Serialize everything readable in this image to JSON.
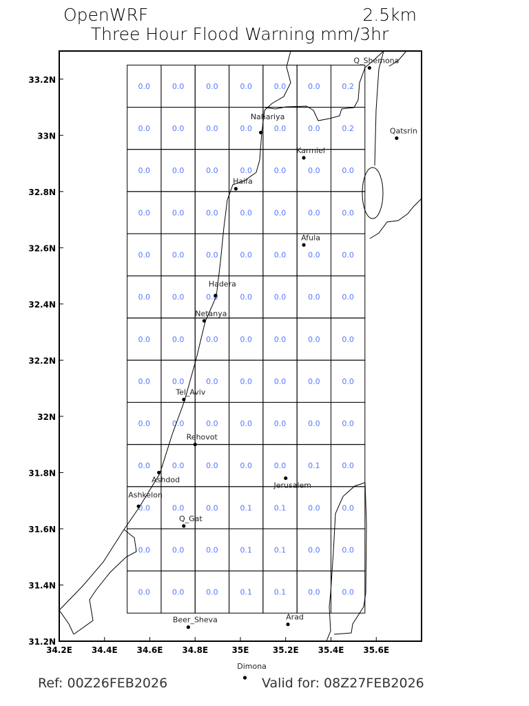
{
  "header": {
    "model": "OpenWRF",
    "resolution": "2.5km",
    "title": "Three Hour Flood Warning mm/3hr"
  },
  "footer": {
    "ref": "Ref: 00Z26FEB2026",
    "valid": "Valid for: 08Z27FEB2026"
  },
  "map": {
    "lon_range": [
      34.2,
      35.8
    ],
    "lat_range": [
      31.2,
      33.3
    ],
    "x_ticks": [
      "34.2E",
      "34.4E",
      "34.6E",
      "34.8E",
      "35E",
      "35.2E",
      "35.4E",
      "35.6E"
    ],
    "x_tick_values": [
      34.2,
      34.4,
      34.6,
      34.8,
      35.0,
      35.2,
      35.4,
      35.6
    ],
    "y_ticks": [
      "31.2N",
      "31.4N",
      "31.6N",
      "31.8N",
      "32N",
      "32.2N",
      "32.4N",
      "32.6N",
      "32.8N",
      "33N",
      "33.2N"
    ],
    "y_tick_values": [
      31.2,
      31.4,
      31.6,
      31.8,
      32.0,
      32.2,
      32.4,
      32.6,
      32.8,
      33.0,
      33.2
    ],
    "value_color": "#5577ff",
    "grid": {
      "lon_start": 34.5,
      "lat_top": 33.25,
      "cell_deg": 0.15,
      "rows": [
        [
          "0.0",
          "0.0",
          "0.0",
          "0.0",
          "0.0",
          "0.0",
          "0.2"
        ],
        [
          "0.0",
          "0.0",
          "0.0",
          "0.0",
          "0.0",
          "0.0",
          "0.2"
        ],
        [
          "0.0",
          "0.0",
          "0.0",
          "0.0",
          "0.0",
          "0.0",
          "0.0"
        ],
        [
          "0.0",
          "0.0",
          "0.0",
          "0.0",
          "0.0",
          "0.0",
          "0.0"
        ],
        [
          "0.0",
          "0.0",
          "0.0",
          "0.0",
          "0.0",
          "0.0",
          "0.0"
        ],
        [
          "0.0",
          "0.0",
          "0.0",
          "0.0",
          "0.0",
          "0.0",
          "0.0"
        ],
        [
          "0.0",
          "0.0",
          "0.0",
          "0.0",
          "0.0",
          "0.0",
          "0.0"
        ],
        [
          "0.0",
          "0.0",
          "0.0",
          "0.0",
          "0.0",
          "0.0",
          "0.0"
        ],
        [
          "0.0",
          "0.0",
          "0.0",
          "0.0",
          "0.0",
          "0.0",
          "0.0"
        ],
        [
          "0.0",
          "0.0",
          "0.0",
          "0.0",
          "0.0",
          "0.1",
          "0.0"
        ],
        [
          "0.0",
          "0.0",
          "0.0",
          "0.1",
          "0.1",
          "0.0",
          "0.0"
        ],
        [
          "0.0",
          "0.0",
          "0.0",
          "0.1",
          "0.1",
          "0.0",
          "0.0"
        ],
        [
          "0.0",
          "0.0",
          "0.0",
          "0.1",
          "0.1",
          "0.0",
          "0.0"
        ]
      ]
    },
    "cities": [
      {
        "name": "Q_Shemona",
        "lon": 35.57,
        "lat": 33.24
      },
      {
        "name": "Qatsrin",
        "lon": 35.69,
        "lat": 32.99
      },
      {
        "name": "Nahariya",
        "lon": 35.09,
        "lat": 33.01
      },
      {
        "name": "Karmiel",
        "lon": 35.28,
        "lat": 32.92
      },
      {
        "name": "Haifa",
        "lon": 34.98,
        "lat": 32.81
      },
      {
        "name": "Afula",
        "lon": 35.28,
        "lat": 32.61
      },
      {
        "name": "Hadera",
        "lon": 34.89,
        "lat": 32.43
      },
      {
        "name": "Netanya",
        "lon": 34.84,
        "lat": 32.34
      },
      {
        "name": "Tel_Aviv",
        "lon": 34.75,
        "lat": 32.06
      },
      {
        "name": "Rehovot",
        "lon": 34.8,
        "lat": 31.9
      },
      {
        "name": "Ashdod",
        "lon": 34.64,
        "lat": 31.8
      },
      {
        "name": "Jerusalem",
        "lon": 35.2,
        "lat": 31.78
      },
      {
        "name": "Ashkelon",
        "lon": 34.55,
        "lat": 31.68
      },
      {
        "name": "Q_Gat",
        "lon": 34.75,
        "lat": 31.61
      },
      {
        "name": "Arad",
        "lon": 35.21,
        "lat": 31.26
      },
      {
        "name": "Beer_Sheva",
        "lon": 34.77,
        "lat": 31.25
      },
      {
        "name": "Dimona",
        "lon": 35.02,
        "lat": 31.07
      }
    ]
  }
}
